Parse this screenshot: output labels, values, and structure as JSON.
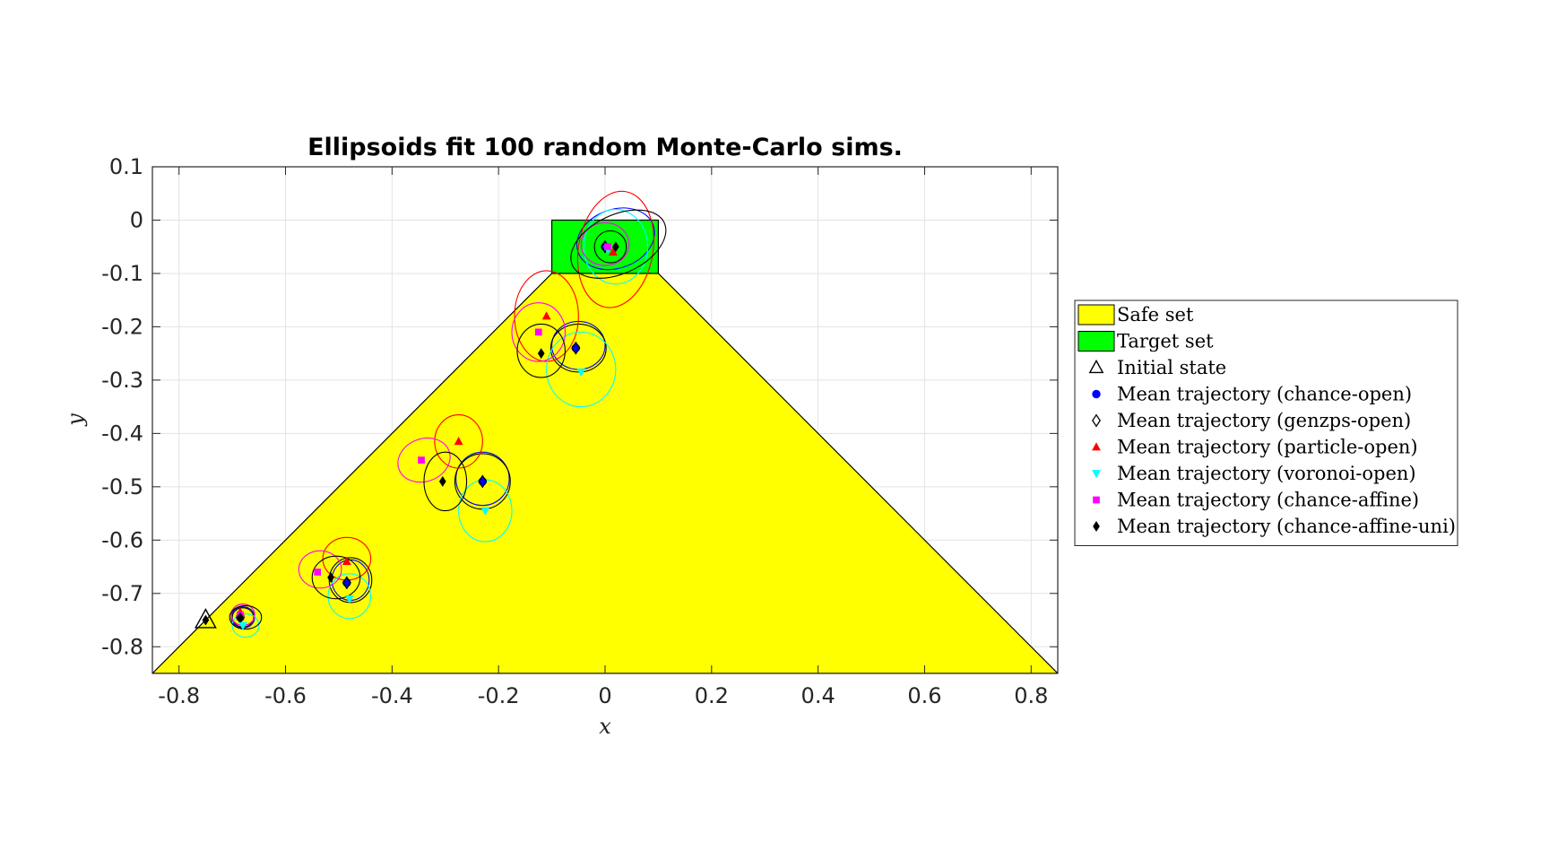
{
  "chart_data": {
    "type": "scatter",
    "title": "Ellipsoids fit 100 random Monte-Carlo sims.",
    "xlabel": "x",
    "ylabel": "y",
    "xlim": [
      -0.85,
      0.85
    ],
    "ylim": [
      -0.85,
      0.1
    ],
    "xticks": [
      -0.8,
      -0.6,
      -0.4,
      -0.2,
      0,
      0.2,
      0.4,
      0.6,
      0.8
    ],
    "xtick_labels": [
      "-0.8",
      "-0.6",
      "-0.4",
      "-0.2",
      "0",
      "0.2",
      "0.4",
      "0.6",
      "0.8"
    ],
    "yticks": [
      0.1,
      0,
      -0.1,
      -0.2,
      -0.3,
      -0.4,
      -0.5,
      -0.6,
      -0.7,
      -0.8
    ],
    "ytick_labels": [
      "0.1",
      "0",
      "-0.1",
      "-0.2",
      "-0.3",
      "-0.4",
      "-0.5",
      "-0.6",
      "-0.7",
      "-0.8"
    ],
    "grid": true,
    "legend_position": "right",
    "colors": {
      "safe": "#ffff00",
      "target": "#00ff00",
      "chance_open": "#0000ff",
      "genzps_open": "#000000",
      "particle_open": "#ff0000",
      "voronoi_open": "#00ffff",
      "chance_affine": "#ff00ff",
      "chance_affine_uni": "#000000"
    },
    "safe_set": {
      "name": "Safe set",
      "vertices": [
        [
          -0.85,
          -0.85
        ],
        [
          -0.1,
          -0.1
        ],
        [
          0.1,
          -0.1
        ],
        [
          0.85,
          -0.85
        ]
      ]
    },
    "target_set": {
      "name": "Target set",
      "x": [
        -0.1,
        0.1
      ],
      "y": [
        -0.1,
        0
      ]
    },
    "initial_state": {
      "name": "Initial state",
      "x": -0.75,
      "y": -0.75
    },
    "series": [
      {
        "name": "Mean trajectory (chance-open)",
        "marker": "circle",
        "color": "#0000ff",
        "points": [
          [
            -0.685,
            -0.745
          ],
          [
            -0.485,
            -0.68
          ],
          [
            -0.23,
            -0.49
          ],
          [
            -0.055,
            -0.24
          ],
          [
            0,
            -0.05
          ]
        ],
        "ellipses": [
          [
            -0.68,
            -0.745,
            0.022,
            0.02,
            0
          ],
          [
            -0.478,
            -0.675,
            0.035,
            0.038,
            0
          ],
          [
            -0.23,
            -0.485,
            0.05,
            0.05,
            0
          ],
          [
            -0.05,
            -0.235,
            0.05,
            0.045,
            0
          ],
          [
            0.02,
            -0.035,
            0.075,
            0.055,
            20
          ]
        ]
      },
      {
        "name": "Mean trajectory (genzps-open)",
        "marker": "diamond-open",
        "color": "#000000",
        "points": [
          [
            -0.685,
            -0.745
          ],
          [
            -0.485,
            -0.68
          ],
          [
            -0.23,
            -0.49
          ],
          [
            -0.055,
            -0.24
          ],
          [
            0,
            -0.05
          ]
        ],
        "ellipses": [
          [
            -0.68,
            -0.745,
            0.02,
            0.018,
            0
          ],
          [
            -0.478,
            -0.675,
            0.04,
            0.042,
            0
          ],
          [
            -0.23,
            -0.49,
            0.052,
            0.052,
            0
          ],
          [
            -0.05,
            -0.24,
            0.052,
            0.045,
            0
          ],
          [
            0.01,
            -0.05,
            0.03,
            0.03,
            0
          ]
        ]
      },
      {
        "name": "Mean trajectory (particle-open)",
        "marker": "triangle-up",
        "color": "#ff0000",
        "points": [
          [
            -0.685,
            -0.735
          ],
          [
            -0.485,
            -0.64
          ],
          [
            -0.275,
            -0.415
          ],
          [
            -0.11,
            -0.18
          ],
          [
            0.015,
            -0.06
          ]
        ],
        "ellipses": [
          [
            -0.68,
            -0.74,
            0.022,
            0.02,
            0
          ],
          [
            -0.485,
            -0.635,
            0.045,
            0.04,
            0
          ],
          [
            -0.275,
            -0.415,
            0.045,
            0.05,
            0
          ],
          [
            -0.11,
            -0.18,
            0.06,
            0.085,
            0
          ],
          [
            0.02,
            -0.055,
            0.07,
            0.11,
            -10
          ]
        ]
      },
      {
        "name": "Mean trajectory (voronoi-open)",
        "marker": "triangle-down",
        "color": "#00ffff",
        "points": [
          [
            -0.68,
            -0.76
          ],
          [
            -0.48,
            -0.71
          ],
          [
            -0.225,
            -0.545
          ],
          [
            -0.045,
            -0.285
          ],
          [
            0.005,
            -0.055
          ]
        ],
        "ellipses": [
          [
            -0.675,
            -0.76,
            0.025,
            0.022,
            0
          ],
          [
            -0.48,
            -0.705,
            0.04,
            0.042,
            0
          ],
          [
            -0.225,
            -0.545,
            0.05,
            0.058,
            0
          ],
          [
            -0.045,
            -0.28,
            0.065,
            0.07,
            0
          ],
          [
            0.02,
            -0.05,
            0.06,
            0.07,
            0
          ]
        ]
      },
      {
        "name": "Mean trajectory (chance-affine)",
        "marker": "square",
        "color": "#ff00ff",
        "points": [
          [
            -0.685,
            -0.74
          ],
          [
            -0.54,
            -0.66
          ],
          [
            -0.345,
            -0.45
          ],
          [
            -0.125,
            -0.21
          ],
          [
            0.005,
            -0.05
          ]
        ],
        "ellipses": [
          [
            -0.68,
            -0.74,
            0.022,
            0.02,
            0
          ],
          [
            -0.535,
            -0.655,
            0.04,
            0.035,
            0
          ],
          [
            -0.34,
            -0.45,
            0.05,
            0.04,
            20
          ],
          [
            -0.125,
            -0.21,
            0.05,
            0.055,
            0
          ],
          [
            0,
            -0.045,
            0.045,
            0.04,
            0
          ]
        ]
      },
      {
        "name": "Mean trajectory (chance-affine-uni)",
        "marker": "diamond",
        "color": "#000000",
        "points": [
          [
            -0.685,
            -0.745
          ],
          [
            -0.515,
            -0.67
          ],
          [
            -0.305,
            -0.49
          ],
          [
            -0.12,
            -0.25
          ],
          [
            0.02,
            -0.05
          ]
        ],
        "ellipses": [
          [
            -0.675,
            -0.745,
            0.03,
            0.022,
            0
          ],
          [
            -0.505,
            -0.67,
            0.045,
            0.04,
            0
          ],
          [
            -0.3,
            -0.49,
            0.04,
            0.055,
            0
          ],
          [
            -0.12,
            -0.245,
            0.045,
            0.05,
            0
          ],
          [
            0.025,
            -0.045,
            0.095,
            0.055,
            25
          ]
        ]
      }
    ]
  }
}
